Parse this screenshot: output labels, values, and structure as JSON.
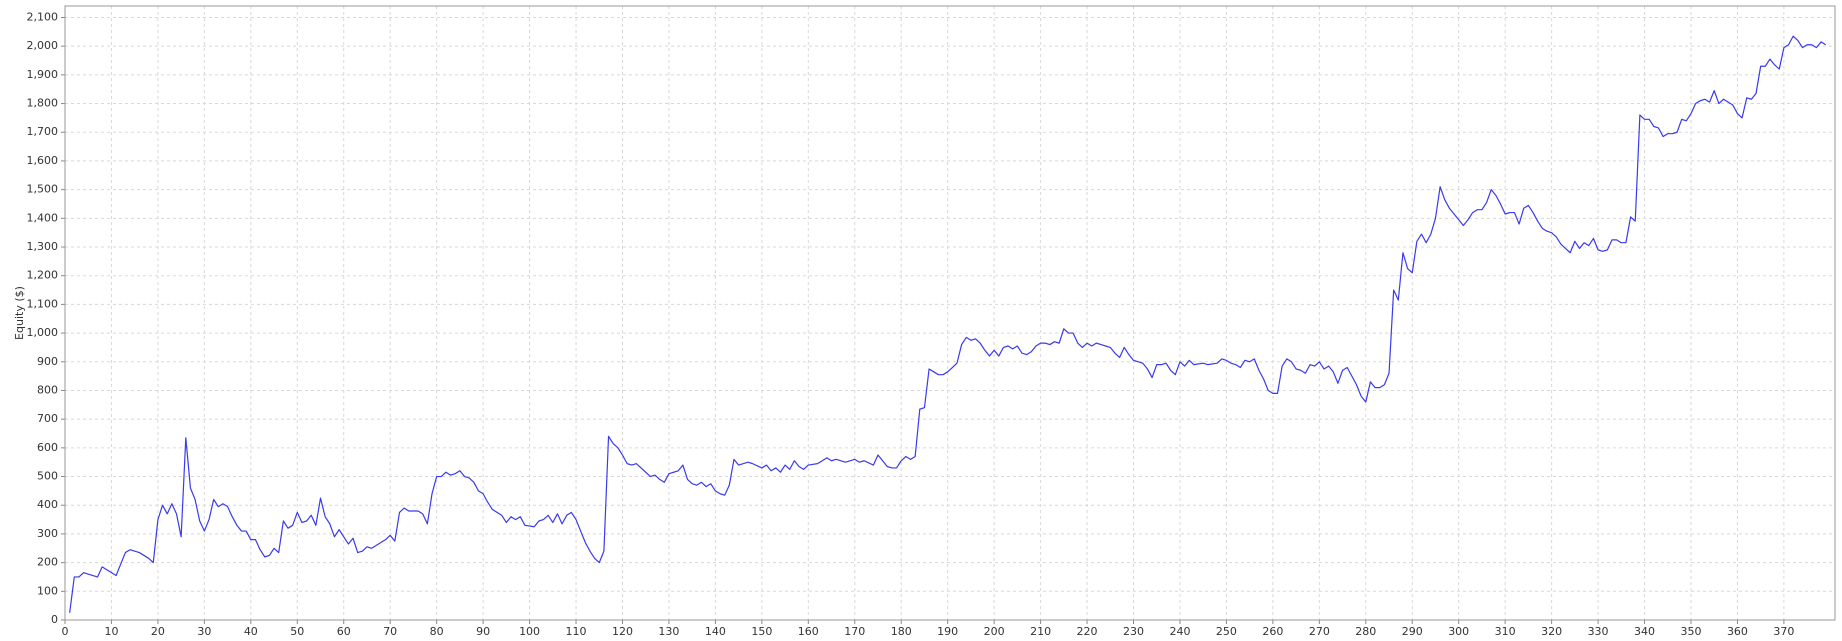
{
  "chart_data": {
    "type": "line",
    "y_label": "Equity ($)",
    "x": [
      1,
      2,
      3,
      4,
      6,
      7,
      8,
      10,
      11,
      13,
      14,
      16,
      18,
      19,
      20,
      21,
      22,
      23,
      24,
      25,
      26,
      27,
      28,
      29,
      30,
      31,
      32,
      33,
      34,
      35,
      36,
      37,
      38,
      39,
      40,
      41,
      42,
      43,
      44,
      45,
      46,
      47,
      48,
      49,
      50,
      51,
      52,
      53,
      54,
      55,
      56,
      57,
      58,
      59,
      60,
      61,
      62,
      63,
      64,
      65,
      66,
      67,
      69,
      70,
      71,
      72,
      73,
      74,
      76,
      77,
      78,
      79,
      80,
      81,
      82,
      83,
      84,
      85,
      86,
      87,
      88,
      89,
      90,
      91,
      92,
      93,
      94,
      95,
      96,
      97,
      98,
      99,
      101,
      102,
      103,
      104,
      105,
      106,
      107,
      108,
      109,
      110,
      111,
      112,
      113,
      114,
      115,
      116,
      117,
      118,
      119,
      120,
      121,
      122,
      123,
      124,
      125,
      126,
      127,
      128,
      129,
      130,
      131,
      132,
      133,
      134,
      135,
      136,
      137,
      138,
      139,
      140,
      141,
      142,
      143,
      144,
      145,
      147,
      148,
      150,
      151,
      152,
      153,
      154,
      155,
      156,
      157,
      158,
      159,
      160,
      162,
      164,
      165,
      166,
      168,
      170,
      171,
      172,
      174,
      175,
      176,
      177,
      178,
      179,
      180,
      181,
      182,
      183,
      184,
      185,
      186,
      187,
      188,
      189,
      190,
      191,
      192,
      193,
      194,
      195,
      196,
      197,
      198,
      199,
      200,
      201,
      202,
      203,
      204,
      205,
      206,
      207,
      208,
      209,
      210,
      211,
      212,
      213,
      214,
      215,
      216,
      217,
      218,
      219,
      220,
      221,
      222,
      223,
      224,
      225,
      226,
      227,
      228,
      229,
      230,
      232,
      233,
      234,
      235,
      236,
      237,
      238,
      239,
      240,
      241,
      242,
      243,
      245,
      246,
      248,
      249,
      250,
      251,
      252,
      253,
      254,
      255,
      256,
      257,
      258,
      259,
      260,
      261,
      262,
      263,
      264,
      265,
      266,
      267,
      268,
      269,
      270,
      271,
      272,
      273,
      274,
      275,
      276,
      277,
      278,
      279,
      280,
      281,
      282,
      283,
      284,
      285,
      286,
      287,
      288,
      289,
      290,
      291,
      292,
      293,
      294,
      295,
      296,
      297,
      298,
      299,
      300,
      301,
      302,
      303,
      304,
      305,
      306,
      307,
      308,
      309,
      310,
      311,
      312,
      313,
      314,
      315,
      316,
      317,
      318,
      319,
      320,
      321,
      322,
      323,
      324,
      325,
      326,
      327,
      328,
      329,
      330,
      331,
      332,
      333,
      334,
      335,
      336,
      337,
      338,
      339,
      340,
      341,
      342,
      343,
      344,
      345,
      346,
      347,
      348,
      349,
      350,
      351,
      352,
      353,
      354,
      355,
      356,
      357,
      358,
      359,
      360,
      361,
      362,
      363,
      364,
      365,
      366,
      367,
      368,
      369,
      370,
      371,
      372,
      373,
      374,
      375,
      376,
      377,
      378,
      379
    ],
    "series": [
      {
        "color": "#3a3aee",
        "values": [
          25,
          150,
          150,
          165,
          155,
          150,
          185,
          165,
          155,
          235,
          245,
          235,
          215,
          200,
          350,
          400,
          370,
          405,
          370,
          290,
          635,
          460,
          420,
          345,
          310,
          350,
          420,
          395,
          405,
          395,
          360,
          330,
          310,
          310,
          280,
          280,
          245,
          220,
          225,
          250,
          235,
          345,
          320,
          330,
          375,
          340,
          345,
          365,
          330,
          425,
          360,
          335,
          290,
          315,
          290,
          265,
          285,
          235,
          240,
          255,
          250,
          260,
          280,
          295,
          275,
          375,
          390,
          380,
          380,
          370,
          335,
          440,
          500,
          500,
          515,
          505,
          510,
          520,
          500,
          495,
          480,
          450,
          440,
          410,
          385,
          375,
          365,
          340,
          360,
          350,
          360,
          330,
          325,
          345,
          350,
          365,
          340,
          370,
          335,
          365,
          375,
          350,
          310,
          270,
          240,
          215,
          200,
          240,
          640,
          615,
          600,
          575,
          545,
          540,
          545,
          530,
          515,
          500,
          505,
          490,
          480,
          510,
          515,
          520,
          540,
          490,
          475,
          470,
          480,
          465,
          475,
          450,
          440,
          435,
          470,
          560,
          540,
          550,
          545,
          530,
          540,
          520,
          530,
          515,
          540,
          525,
          555,
          535,
          525,
          540,
          545,
          565,
          555,
          560,
          550,
          560,
          550,
          555,
          540,
          575,
          555,
          535,
          530,
          530,
          555,
          570,
          560,
          570,
          735,
          740,
          875,
          865,
          855,
          855,
          865,
          880,
          895,
          960,
          985,
          975,
          980,
          965,
          940,
          920,
          940,
          920,
          950,
          955,
          945,
          955,
          930,
          925,
          935,
          955,
          965,
          965,
          960,
          970,
          965,
          1015,
          1000,
          1000,
          965,
          950,
          965,
          955,
          965,
          960,
          955,
          950,
          930,
          915,
          950,
          925,
          905,
          895,
          875,
          845,
          890,
          890,
          895,
          870,
          855,
          900,
          885,
          905,
          890,
          895,
          890,
          895,
          910,
          905,
          895,
          890,
          880,
          905,
          900,
          910,
          870,
          840,
          800,
          790,
          790,
          885,
          910,
          900,
          875,
          870,
          860,
          890,
          885,
          900,
          875,
          885,
          865,
          825,
          870,
          880,
          850,
          820,
          780,
          760,
          830,
          810,
          810,
          820,
          860,
          1150,
          1115,
          1280,
          1225,
          1210,
          1320,
          1345,
          1315,
          1345,
          1400,
          1510,
          1465,
          1435,
          1415,
          1395,
          1375,
          1395,
          1420,
          1430,
          1430,
          1455,
          1500,
          1480,
          1450,
          1415,
          1420,
          1420,
          1380,
          1435,
          1445,
          1420,
          1390,
          1365,
          1355,
          1350,
          1335,
          1310,
          1295,
          1280,
          1320,
          1295,
          1315,
          1305,
          1330,
          1290,
          1285,
          1290,
          1325,
          1325,
          1315,
          1315,
          1405,
          1390,
          1760,
          1745,
          1745,
          1720,
          1715,
          1685,
          1695,
          1695,
          1700,
          1745,
          1740,
          1765,
          1800,
          1810,
          1815,
          1805,
          1845,
          1800,
          1815,
          1805,
          1795,
          1765,
          1750,
          1820,
          1815,
          1835,
          1930,
          1930,
          1955,
          1935,
          1920,
          1995,
          2005,
          2035,
          2020,
          1995,
          2005,
          2005,
          1995,
          2015,
          2005
        ]
      }
    ],
    "xlim": [
      0,
      381
    ],
    "xticks": [
      0,
      10,
      20,
      30,
      40,
      50,
      60,
      70,
      80,
      90,
      100,
      110,
      120,
      130,
      140,
      150,
      160,
      170,
      180,
      190,
      200,
      210,
      220,
      230,
      240,
      250,
      260,
      270,
      280,
      290,
      300,
      310,
      320,
      330,
      340,
      350,
      360,
      370
    ],
    "ylim": [
      0,
      2140
    ],
    "yticks": [
      0,
      100,
      200,
      300,
      400,
      500,
      600,
      700,
      800,
      900,
      {
        "value": 1000,
        "label": "1,000"
      },
      {
        "value": 1100,
        "label": "1,100"
      },
      {
        "value": 1200,
        "label": "1,200"
      },
      {
        "value": 1300,
        "label": "1,300"
      },
      {
        "value": 1400,
        "label": "1,400"
      },
      {
        "value": 1500,
        "label": "1,500"
      },
      {
        "value": 1600,
        "label": "1,600"
      },
      {
        "value": 1700,
        "label": "1,700"
      },
      {
        "value": 1800,
        "label": "1,800"
      },
      {
        "value": 1900,
        "label": "1,900"
      },
      {
        "value": 2000,
        "label": "2,000"
      },
      {
        "value": 2100,
        "label": "2,100"
      }
    ],
    "grid": true
  }
}
